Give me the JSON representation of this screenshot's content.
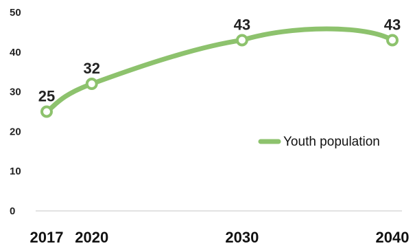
{
  "chart_data": {
    "type": "line",
    "title": "",
    "xlabel": "",
    "ylabel": "",
    "x": [
      "2017",
      "2020",
      "2030",
      "2040"
    ],
    "x_numeric": [
      2017,
      2020,
      2030,
      2040
    ],
    "series": [
      {
        "name": "Youth population",
        "values": [
          25,
          32,
          43,
          43
        ],
        "color": "#8dc26d"
      }
    ],
    "data_labels": [
      "25",
      "32",
      "43",
      "43"
    ],
    "yticks": [
      "0",
      "10",
      "20",
      "30",
      "40",
      "50"
    ],
    "ylim": [
      0,
      50
    ],
    "grid": false,
    "legend_position": "right"
  }
}
